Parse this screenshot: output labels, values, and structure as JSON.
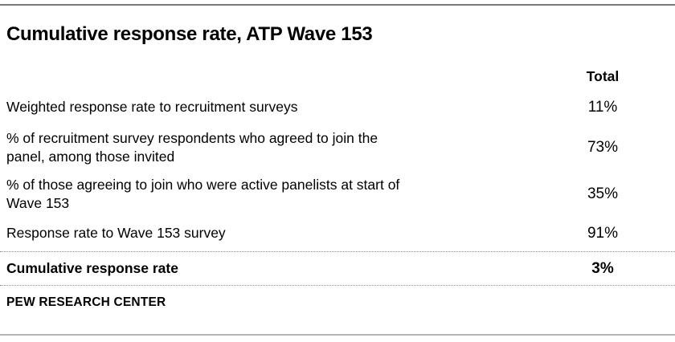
{
  "header": {
    "title": "Cumulative response rate, ATP Wave 153"
  },
  "table": {
    "value_column_header": "Total",
    "rows": [
      {
        "label": "Weighted response rate to recruitment surveys",
        "value": "11%"
      },
      {
        "label": "% of recruitment survey respondents who agreed to join the\npanel, among those invited",
        "value": "73%"
      },
      {
        "label": "% of those agreeing to join who were active panelists at start of\nWave 153",
        "value": "35%"
      },
      {
        "label": "Response rate to Wave 153 survey",
        "value": "91%"
      }
    ],
    "summary_row": {
      "label": "Cumulative response rate",
      "value": "3%"
    }
  },
  "footer": {
    "source_label": "PEW RESEARCH CENTER"
  },
  "colors": {
    "text": "#000000",
    "top_rule": "#7a7a7a",
    "bottom_rule": "#b5b5b5",
    "dotted_rule": "#8c8c8c",
    "background": "#ffffff"
  },
  "chart_data": {
    "type": "table",
    "title": "Cumulative response rate, ATP Wave 153",
    "columns": [
      "",
      "Total"
    ],
    "rows": [
      [
        "Weighted response rate to recruitment surveys",
        "11%"
      ],
      [
        "% of recruitment survey respondents who agreed to join the panel, among those invited",
        "73%"
      ],
      [
        "% of those agreeing to join who were active panelists at start of Wave 153",
        "35%"
      ],
      [
        "Response rate to Wave 153 survey",
        "91%"
      ],
      [
        "Cumulative response rate",
        "3%"
      ]
    ],
    "values_numeric_pct": [
      11,
      73,
      35,
      91,
      3
    ],
    "summary_row_index": 4,
    "source": "PEW RESEARCH CENTER",
    "layout_hints": {
      "value_column_alignment": "center",
      "summary_row_style": "bold, dotted rule above and below",
      "top_rule": "solid gray",
      "bottom_rule": "solid light gray"
    }
  }
}
